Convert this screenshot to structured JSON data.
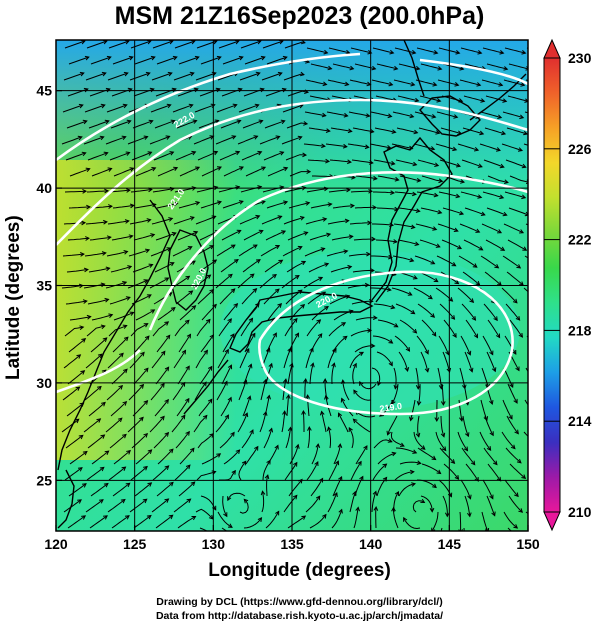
{
  "title": "MSM 21Z16Sep2023 (200.0hPa)",
  "axes": {
    "xlabel": "Longitude (degrees)",
    "ylabel": "Latitude  (degrees)",
    "x_ticks": [
      "120",
      "125",
      "130",
      "135",
      "140",
      "145",
      "150"
    ],
    "y_ticks": [
      "25",
      "30",
      "35",
      "40",
      "45"
    ],
    "xlim": [
      120,
      150
    ],
    "ylim": [
      22.4,
      47.6
    ]
  },
  "colorbar": {
    "ticks": [
      "230",
      "226",
      "222",
      "218",
      "214",
      "210"
    ],
    "range": [
      210,
      230
    ],
    "colors": [
      "#e8179b",
      "#9c1aa8",
      "#3a2fc0",
      "#1f57e0",
      "#1d9fe6",
      "#22d9c4",
      "#2fe08a",
      "#39d84a",
      "#7cd83a",
      "#c2e02e",
      "#f3d72a",
      "#f6a126",
      "#f0622a",
      "#e02f2f"
    ]
  },
  "contour_labels": [
    "222.0",
    "221.0",
    "220.0",
    "220.0",
    "219.0"
  ],
  "credits": {
    "line1": "Drawing by DCL (https://www.gfd-dennou.org/library/dcl/)",
    "line2": "Data from http://database.rish.kyoto-u.ac.jp/arch/jmadata/"
  }
}
